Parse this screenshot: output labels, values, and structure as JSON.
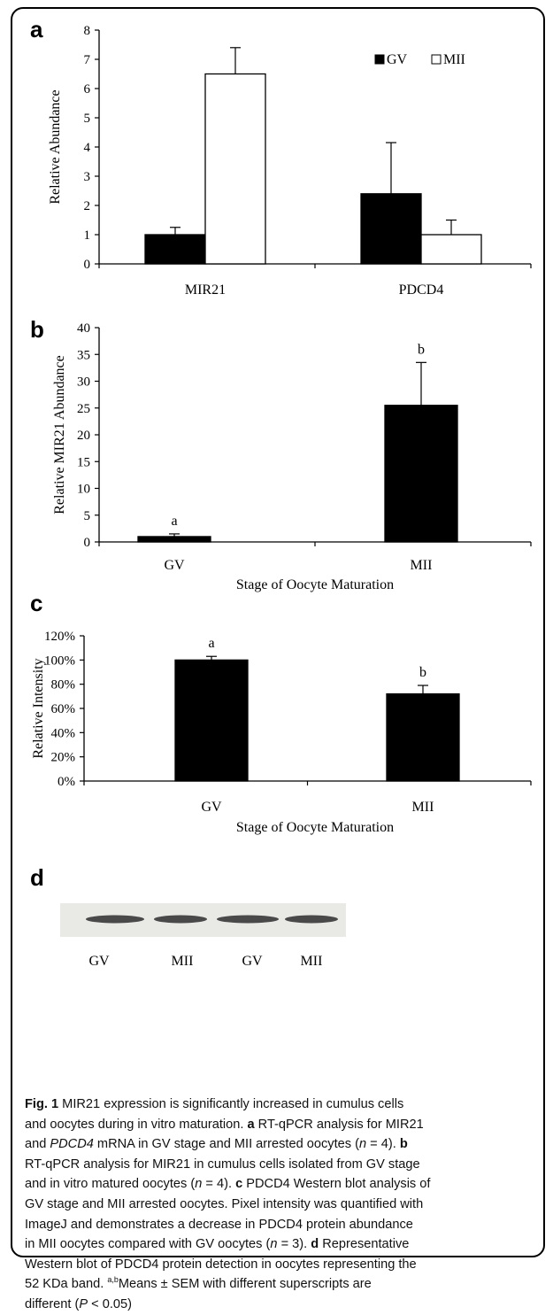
{
  "chart_data": [
    {
      "panel": "a",
      "type": "bar",
      "categories": [
        "MIR21",
        "PDCD4"
      ],
      "series": [
        {
          "name": "GV",
          "color": "#000000",
          "values": [
            1.0,
            2.4
          ],
          "errors": [
            0.25,
            1.75
          ]
        },
        {
          "name": "MII",
          "color": "#ffffff",
          "values": [
            6.5,
            1.0
          ],
          "errors": [
            0.9,
            0.5
          ]
        }
      ],
      "ylabel": "Relative  Abundance",
      "xlabel": "",
      "ylim": [
        0,
        8
      ],
      "yticks": [
        "0",
        "1",
        "2",
        "3",
        "4",
        "5",
        "6",
        "7",
        "8"
      ],
      "legend": "top-right",
      "grid": false
    },
    {
      "panel": "b",
      "type": "bar",
      "categories": [
        "GV",
        "MII"
      ],
      "values": [
        1.0,
        25.5
      ],
      "errors": [
        0.5,
        8.0
      ],
      "sig_letters": [
        "a",
        "b"
      ],
      "ylabel": "Relative MIR21 Abundance",
      "xlabel": "Stage of Oocyte Maturation",
      "ylim": [
        0,
        40
      ],
      "yticks": [
        "0",
        "5",
        "10",
        "15",
        "20",
        "25",
        "30",
        "35",
        "40"
      ],
      "grid": false
    },
    {
      "panel": "c",
      "type": "bar",
      "categories": [
        "GV",
        "MII"
      ],
      "values": [
        100,
        72
      ],
      "errors": [
        3,
        7
      ],
      "sig_letters": [
        "a",
        "b"
      ],
      "ylabel": "Relative Intensity",
      "xlabel": "Stage of Oocyte Maturation",
      "ylim": [
        0,
        120
      ],
      "yticks": [
        "0%",
        "20%",
        "40%",
        "60%",
        "80%",
        "100%",
        "120%"
      ],
      "grid": false
    }
  ],
  "panel_d": {
    "letter": "d",
    "lane_labels": [
      "GV",
      "MII",
      "GV",
      "MII"
    ]
  },
  "caption": {
    "fig_label": "Fig. 1",
    "text_lines": [
      [
        {
          "t": "Fig. 1",
          "b": true
        },
        {
          "t": " MIR21 expression is significantly increased in cumulus cells"
        }
      ],
      [
        {
          "t": "and oocytes during in vitro maturation. "
        },
        {
          "t": "a",
          "b": true
        },
        {
          "t": " RT-qPCR analysis for MIR21"
        }
      ],
      [
        {
          "t": "and "
        },
        {
          "t": "PDCD4",
          "i": true
        },
        {
          "t": " mRNA in GV stage and MII arrested oocytes ("
        },
        {
          "t": "n",
          "i": true
        },
        {
          "t": " = 4). "
        },
        {
          "t": "b",
          "b": true
        }
      ],
      [
        {
          "t": "RT-qPCR analysis for MIR21 in cumulus cells isolated from GV stage"
        }
      ],
      [
        {
          "t": "and in vitro matured oocytes ("
        },
        {
          "t": "n",
          "i": true
        },
        {
          "t": " = 4). "
        },
        {
          "t": "c",
          "b": true
        },
        {
          "t": " PDCD4 Western blot analysis of"
        }
      ],
      [
        {
          "t": "GV stage and MII arrested oocytes. Pixel intensity was quantified with"
        }
      ],
      [
        {
          "t": "ImageJ and demonstrates a decrease in PDCD4 protein abundance"
        }
      ],
      [
        {
          "t": "in MII oocytes compared with GV oocytes ("
        },
        {
          "t": "n",
          "i": true
        },
        {
          "t": " = 3). "
        },
        {
          "t": "d",
          "b": true
        },
        {
          "t": " Representative"
        }
      ],
      [
        {
          "t": "Western blot of PDCD4 protein detection in oocytes representing the"
        }
      ],
      [
        {
          "t": "52 KDa band. "
        },
        {
          "t": "a,b",
          "sup": true
        },
        {
          "t": "Means ± SEM with different superscripts are"
        }
      ],
      [
        {
          "t": "different ("
        },
        {
          "t": "P",
          "i": true
        },
        {
          "t": " < 0.05)"
        }
      ]
    ]
  }
}
